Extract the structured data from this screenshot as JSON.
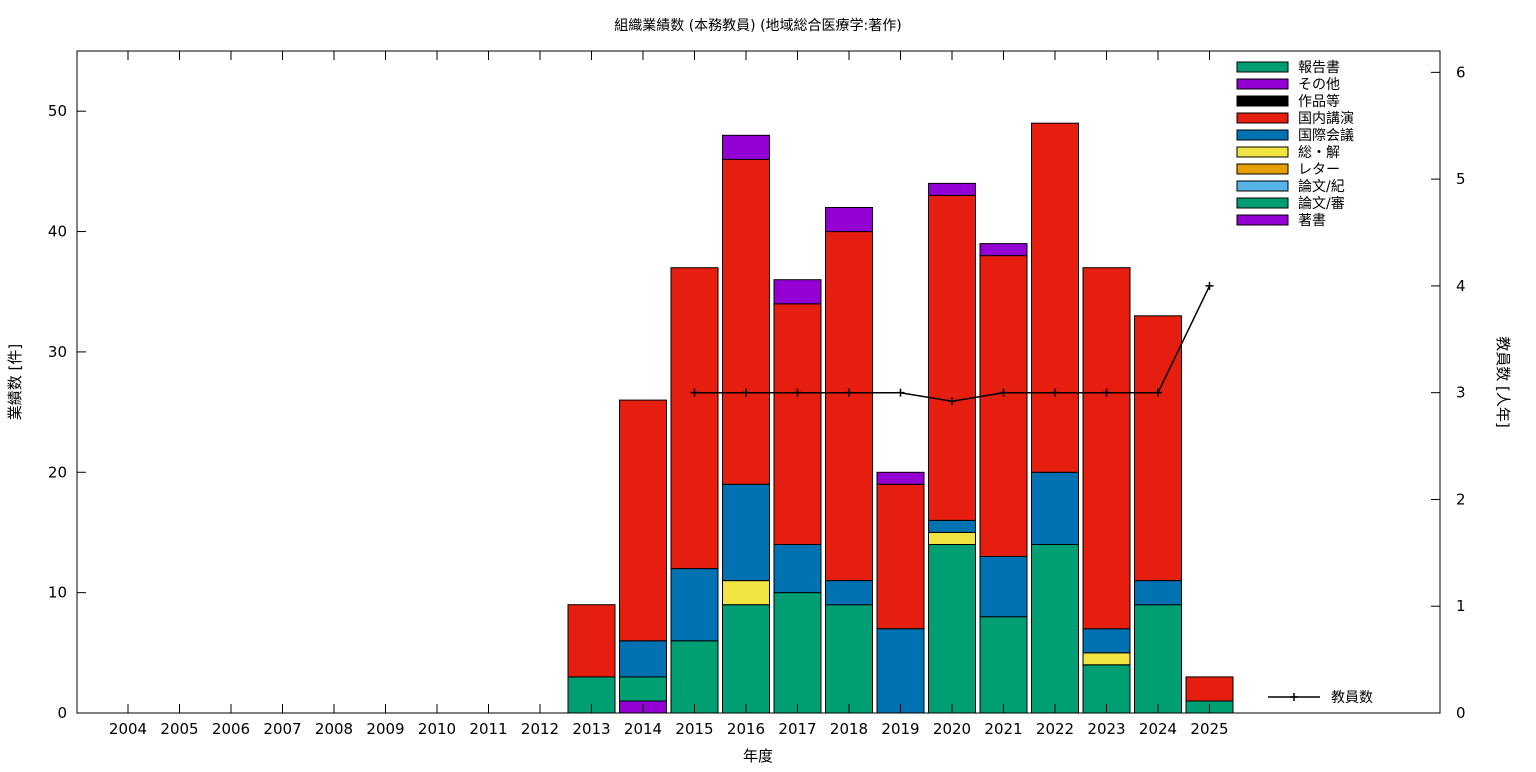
{
  "chart_data": {
    "type": "bar",
    "stacked": true,
    "title": "組織業績数 (本務教員) (地域総合医療学:著作)",
    "xlabel": "年度",
    "ylabel": "業績数 [件]",
    "y2label": "教員数 [人年]",
    "ylim": [
      0,
      55
    ],
    "y2lim": [
      0,
      6.2
    ],
    "yticks": [
      "0",
      "10",
      "20",
      "30",
      "40",
      "50"
    ],
    "y2ticks": [
      "0",
      "1",
      "2",
      "3",
      "4",
      "5",
      "6"
    ],
    "grid": false,
    "legend_position": "top-right",
    "categories": [
      "2004",
      "2005",
      "2006",
      "2007",
      "2008",
      "2009",
      "2010",
      "2011",
      "2012",
      "2013",
      "2014",
      "2015",
      "2016",
      "2017",
      "2018",
      "2019",
      "2020",
      "2021",
      "2022",
      "2023",
      "2024",
      "2025"
    ],
    "series": [
      {
        "name": "著書",
        "color": "#9400D3",
        "values": [
          0,
          0,
          0,
          0,
          0,
          0,
          0,
          0,
          0,
          0,
          1,
          0,
          0,
          0,
          0,
          0,
          0,
          0,
          0,
          0,
          0,
          0
        ]
      },
      {
        "name": "論文/審",
        "color": "#009E73",
        "values": [
          0,
          0,
          0,
          0,
          0,
          0,
          0,
          0,
          0,
          3,
          2,
          6,
          9,
          10,
          9,
          0,
          14,
          8,
          14,
          4,
          9,
          1
        ]
      },
      {
        "name": "論文/紀",
        "color": "#56B4E9",
        "values": [
          0,
          0,
          0,
          0,
          0,
          0,
          0,
          0,
          0,
          0,
          0,
          0,
          0,
          0,
          0,
          0,
          0,
          0,
          0,
          0,
          0,
          0
        ]
      },
      {
        "name": "レター",
        "color": "#E69F00",
        "values": [
          0,
          0,
          0,
          0,
          0,
          0,
          0,
          0,
          0,
          0,
          0,
          0,
          0,
          0,
          0,
          0,
          0,
          0,
          0,
          0,
          0,
          0
        ]
      },
      {
        "name": "総・解",
        "color": "#F0E442",
        "values": [
          0,
          0,
          0,
          0,
          0,
          0,
          0,
          0,
          0,
          0,
          0,
          0,
          2,
          0,
          0,
          0,
          1,
          0,
          0,
          1,
          0,
          0
        ]
      },
      {
        "name": "国際会議",
        "color": "#0072B2",
        "values": [
          0,
          0,
          0,
          0,
          0,
          0,
          0,
          0,
          0,
          0,
          3,
          6,
          8,
          4,
          2,
          7,
          1,
          5,
          6,
          2,
          2,
          0
        ]
      },
      {
        "name": "国内講演",
        "color": "#E51E10",
        "values": [
          0,
          0,
          0,
          0,
          0,
          0,
          0,
          0,
          0,
          6,
          20,
          25,
          27,
          20,
          29,
          12,
          27,
          25,
          29,
          30,
          22,
          2
        ]
      },
      {
        "name": "作品等",
        "color": "#000000",
        "values": [
          0,
          0,
          0,
          0,
          0,
          0,
          0,
          0,
          0,
          0,
          0,
          0,
          0,
          0,
          0,
          0,
          0,
          0,
          0,
          0,
          0,
          0
        ]
      },
      {
        "name": "その他",
        "color": "#9400D3",
        "values": [
          0,
          0,
          0,
          0,
          0,
          0,
          0,
          0,
          0,
          0,
          0,
          0,
          2,
          2,
          2,
          1,
          1,
          1,
          0,
          0,
          0,
          0
        ]
      },
      {
        "name": "報告書",
        "color": "#009E73",
        "values": [
          0,
          0,
          0,
          0,
          0,
          0,
          0,
          0,
          0,
          0,
          0,
          0,
          0,
          0,
          0,
          0,
          0,
          0,
          0,
          0,
          0,
          0
        ]
      }
    ],
    "line_series": {
      "name": "教員数",
      "axis": "y2",
      "color": "#000000",
      "x": [
        "2015",
        "2016",
        "2017",
        "2018",
        "2019",
        "2020",
        "2021",
        "2022",
        "2023",
        "2024",
        "2025"
      ],
      "values": [
        3,
        3,
        3,
        3,
        3,
        2.92,
        3,
        3,
        3,
        3,
        4
      ]
    }
  }
}
